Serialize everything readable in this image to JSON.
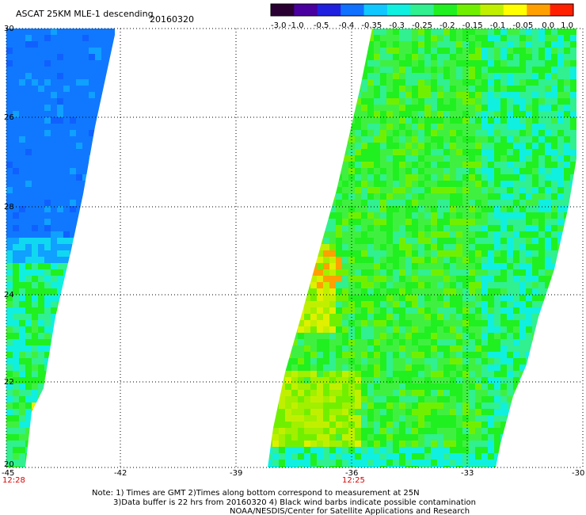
{
  "header": {
    "title": "ASCAT 25KM MLE-1 descending",
    "date": "20160320"
  },
  "colorbar": {
    "tick_labels": [
      "-3.0",
      "-1.0",
      "-0.5",
      "-0.4",
      "-0.35",
      "-0.3",
      "-0.25",
      "-0.2",
      "-0.15",
      "-0.1",
      "-0.05",
      "0.0",
      "1.0"
    ],
    "colors": [
      "#2a0033",
      "#4a00a0",
      "#2020e0",
      "#1070ff",
      "#10c8ff",
      "#10f0e0",
      "#30f090",
      "#20f020",
      "#70f000",
      "#c0f000",
      "#ffff00",
      "#ffa000",
      "#ff2000"
    ]
  },
  "map": {
    "lon_ticks": [
      "-45",
      "-42",
      "-39",
      "-36",
      "-33",
      "-30"
    ],
    "lat_ticks": [
      "30",
      "26",
      "28",
      "24",
      "22",
      "20"
    ],
    "pass_times": [
      "12:28",
      "12:25"
    ],
    "grid": "dotted"
  },
  "notes": [
    "Note: 1) Times are GMT 2)Times along bottom correspond to measurement at 25N",
    "3)Data buffer is 22 hrs from 20160320 4) Black wind barbs indicate possible contamination",
    "NOAA/NESDIS/Center for Satellite Applications and Research"
  ]
}
